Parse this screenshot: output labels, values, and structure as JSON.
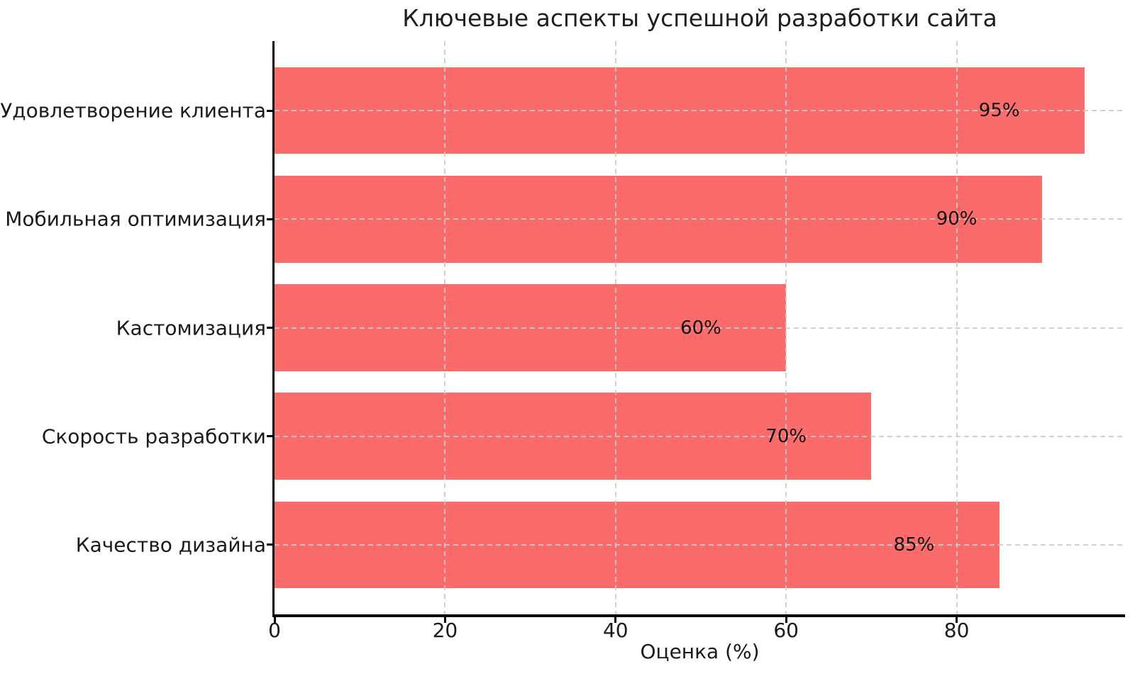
{
  "chart_data": {
    "type": "bar",
    "orientation": "horizontal",
    "title": "Ключевые аспекты успешной разработки сайта",
    "xlabel": "Оценка (%)",
    "ylabel": "",
    "categories": [
      "Удовлетворение клиента",
      "Мобильная оптимизация",
      "Кастомизация",
      "Скорость разработки",
      "Качество дизайна"
    ],
    "values": [
      95,
      90,
      60,
      70,
      85
    ],
    "value_labels": [
      "95%",
      "90%",
      "60%",
      "70%",
      "85%"
    ],
    "xticks": [
      0,
      20,
      40,
      60,
      80
    ],
    "xlim": [
      0,
      99.75
    ],
    "grid": "dashed, both directions, drawn over bars",
    "legend": "none",
    "colors": {
      "bar": "#fa6b6b",
      "grid": "#cacaca",
      "axis": "#000000",
      "text": "#1a1a1a",
      "background": "#ffffff"
    }
  }
}
